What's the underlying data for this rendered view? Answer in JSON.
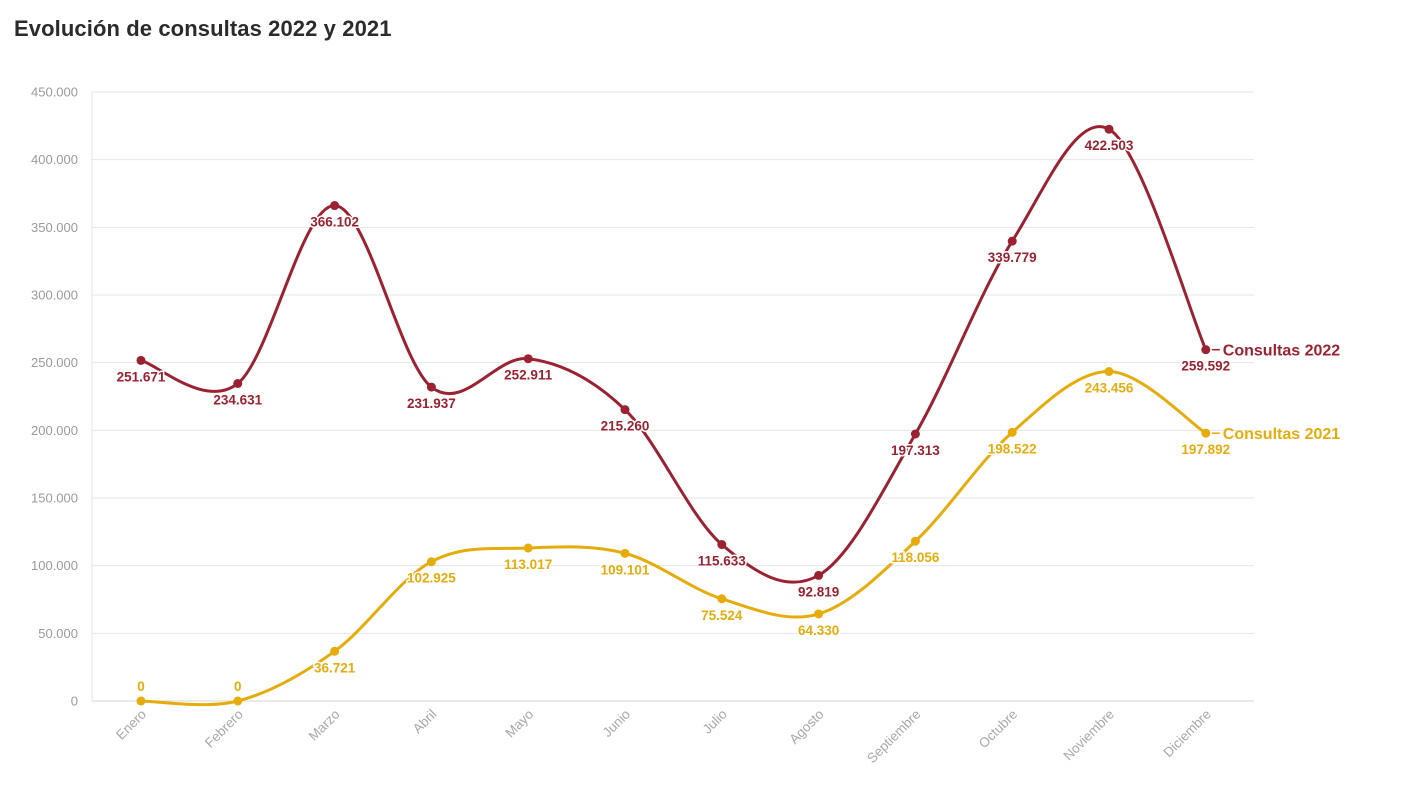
{
  "title": "Evolución de consultas 2022 y 2021",
  "chart_data": {
    "type": "line",
    "title": "Evolución de consultas 2022 y 2021",
    "xlabel": "",
    "ylabel": "",
    "ylim": [
      0,
      450000
    ],
    "yticks": [
      "0",
      "50.000",
      "100.000",
      "150.000",
      "200.000",
      "250.000",
      "300.000",
      "350.000",
      "400.000",
      "450.000"
    ],
    "grid": true,
    "smooth": true,
    "categories": [
      "Enero",
      "Febrero",
      "Marzo",
      "Abril",
      "Mayo",
      "Junio",
      "Julio",
      "Agosto",
      "Septiembre",
      "Octubre",
      "Noviembre",
      "Diciembre"
    ],
    "series": [
      {
        "name": "Consultas 2022",
        "color": "#9b2230",
        "values": [
          251671,
          234631,
          366102,
          231937,
          252911,
          215260,
          115633,
          92819,
          197313,
          339779,
          422503,
          259592
        ],
        "labels": [
          "251.671",
          "234.631",
          "366.102",
          "231.937",
          "252.911",
          "215.260",
          "115.633",
          "92.819",
          "197.313",
          "339.779",
          "422.503",
          "259.592"
        ]
      },
      {
        "name": "Consultas 2021",
        "color": "#e6ac0c",
        "values": [
          0,
          0,
          36721,
          102925,
          113017,
          109101,
          75524,
          64330,
          118056,
          198522,
          243456,
          197892
        ],
        "labels": [
          "0",
          "0",
          "36.721",
          "102.925",
          "113.017",
          "109.101",
          "75.524",
          "64.330",
          "118.056",
          "198.522",
          "243.456",
          "197.892"
        ]
      }
    ]
  }
}
